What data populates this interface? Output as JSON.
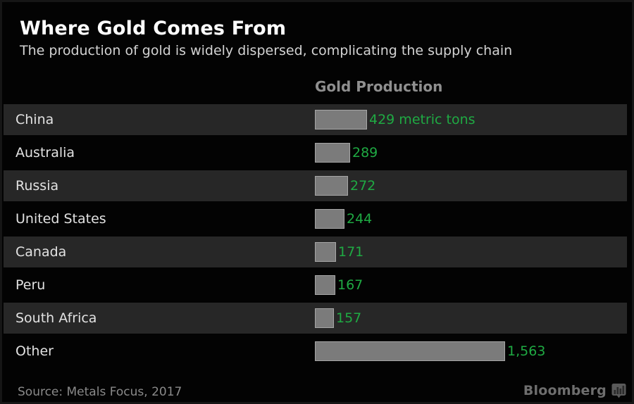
{
  "header": {
    "title": "Where Gold Comes From",
    "subtitle": "The production of gold is widely dispersed, complicating the supply chain",
    "column_header": "Gold Production"
  },
  "footer": {
    "source": "Source: Metals Focus, 2017",
    "brand": "Bloomberg",
    "brand_icon": "bar-chart-badge-icon"
  },
  "colors": {
    "title_white": "#ffffff",
    "subtitle_gray": "#d3d3d3",
    "header_gray": "#8f8f8f",
    "label_gray": "#e2e2e2",
    "row_alt": "#272727",
    "bar_fill": "#7b7b7b",
    "bar_border": "#a6a6a6",
    "value_green": "#1faa43",
    "source_gray": "#8a8a8a",
    "brand_gray": "#6e6e6e"
  },
  "chart_data": {
    "type": "bar",
    "orientation": "horizontal",
    "title": "Where Gold Comes From",
    "subtitle": "The production of gold is widely dispersed, complicating the supply chain",
    "column_header": "Gold Production",
    "categories": [
      "China",
      "Australia",
      "Russia",
      "United States",
      "Canada",
      "Peru",
      "South Africa",
      "Other"
    ],
    "values": [
      429,
      289,
      272,
      244,
      171,
      167,
      157,
      1563
    ],
    "value_labels": [
      "429 metric tons",
      "289",
      "272",
      "244",
      "171",
      "167",
      "157",
      "1,563"
    ],
    "unit": "metric tons",
    "xlim": [
      0,
      1563
    ],
    "grid": false,
    "legend": false,
    "row_shading": "alternating",
    "source": "Metals Focus, 2017"
  }
}
